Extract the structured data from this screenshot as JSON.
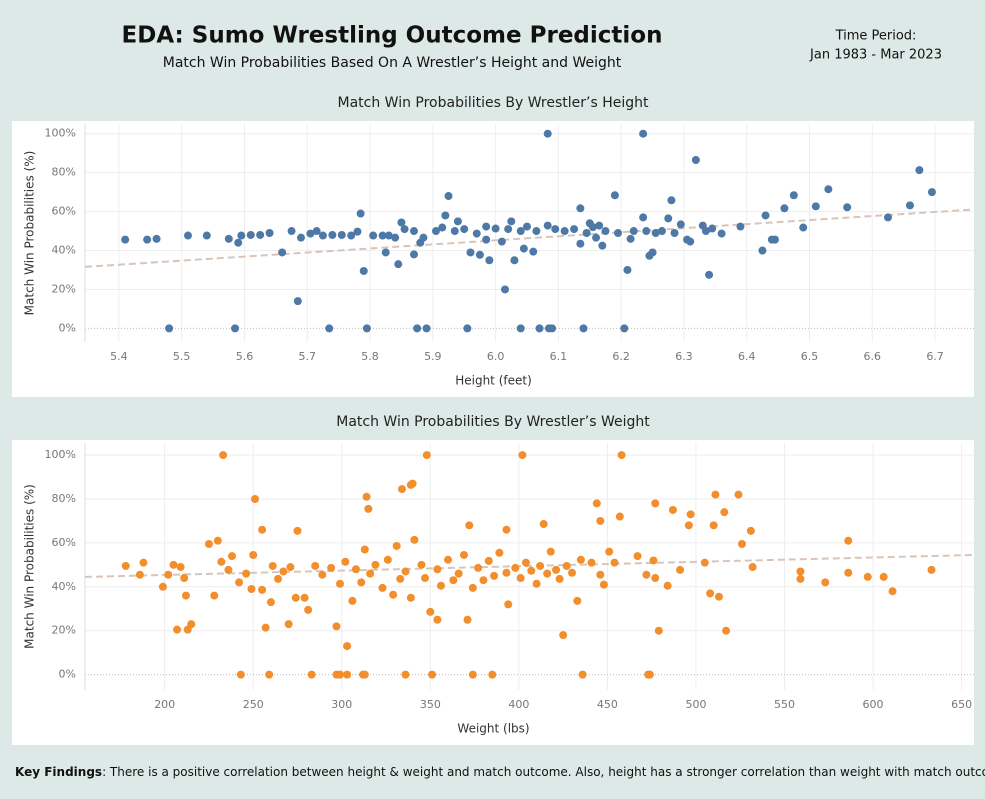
{
  "header": {
    "title": "EDA: Sumo Wrestling Outcome Prediction",
    "subtitle": "Match Win Probabilities Based On A Wrestler’s Height and Weight",
    "time_period_label": "Time Period:",
    "time_period": "Jan 1983 - Mar 2023"
  },
  "footer": {
    "key_findings_label": "Key Findings",
    "key_findings_text": ": There is a positive correlation between height & weight and match outcome. Also, height has a stronger correlation than weight with match outcomes."
  },
  "chart_data": [
    {
      "type": "scatter",
      "title": "Match Win Probabilities By Wrestler’s Height",
      "x_label": "Height (feet)",
      "y_label": "Match Win Probabilities (%)",
      "color": "#4e79a7",
      "x": [
        5.41,
        5.445,
        5.46,
        5.48,
        5.51,
        5.54,
        5.575,
        5.585,
        5.59,
        5.595,
        5.61,
        5.625,
        5.64,
        5.66,
        5.675,
        5.685,
        5.69,
        5.705,
        5.715,
        5.725,
        5.735,
        5.74,
        5.755,
        5.77,
        5.78,
        5.785,
        5.79,
        5.795,
        5.805,
        5.82,
        5.825,
        5.83,
        5.84,
        5.845,
        5.85,
        5.855,
        5.87,
        5.87,
        5.875,
        5.88,
        5.885,
        5.89,
        5.905,
        5.915,
        5.92,
        5.925,
        5.935,
        5.94,
        5.95,
        5.955,
        5.96,
        5.97,
        5.975,
        5.985,
        5.985,
        5.99,
        6.0,
        6.01,
        6.015,
        6.02,
        6.025,
        6.03,
        6.04,
        6.04,
        6.045,
        6.05,
        6.06,
        6.065,
        6.07,
        6.083,
        6.083,
        6.085,
        6.09,
        6.095,
        6.11,
        6.125,
        6.135,
        6.135,
        6.14,
        6.145,
        6.15,
        6.155,
        6.16,
        6.165,
        6.17,
        6.175,
        6.19,
        6.195,
        6.205,
        6.21,
        6.215,
        6.22,
        6.235,
        6.235,
        6.24,
        6.245,
        6.25,
        6.255,
        6.265,
        6.275,
        6.28,
        6.285,
        6.295,
        6.305,
        6.31,
        6.319,
        6.33,
        6.335,
        6.34,
        6.345,
        6.36,
        6.39,
        6.425,
        6.43,
        6.44,
        6.445,
        6.46,
        6.475,
        6.49,
        6.51,
        6.53,
        6.56,
        6.625,
        6.66,
        6.675,
        6.695
      ],
      "values": [
        45.6,
        45.6,
        46,
        0,
        47.7,
        47.7,
        46,
        0,
        44,
        47.7,
        48,
        48,
        49,
        39,
        50,
        14,
        46.6,
        48.7,
        50,
        47.7,
        0,
        48,
        48,
        47.7,
        49.7,
        59,
        29.5,
        0,
        47.7,
        47.7,
        39,
        47.7,
        46.6,
        33,
        54.4,
        51,
        50,
        38,
        0,
        44,
        46.6,
        0,
        50,
        51.8,
        58,
        68,
        50,
        55,
        51,
        0,
        39,
        48.7,
        37.8,
        45.6,
        52.3,
        35,
        51.3,
        44.6,
        20,
        51,
        55,
        35,
        0,
        50,
        41,
        52.3,
        39.4,
        50,
        0,
        100,
        52.8,
        0,
        0,
        51,
        50,
        51,
        61.7,
        43.5,
        0,
        49,
        54,
        52,
        46.6,
        52.8,
        42.5,
        50,
        68.4,
        49,
        0,
        30,
        46,
        50,
        100,
        57,
        50,
        37.3,
        39,
        49,
        50,
        56.5,
        65.8,
        49,
        53.4,
        45.6,
        44.6,
        86.5,
        52.8,
        50,
        27.5,
        51.3,
        48.7,
        52.3,
        40,
        58,
        45.6,
        45.6,
        61.7,
        68.4,
        51.8,
        62.7,
        71.5,
        62.2,
        57,
        63.2,
        81.3,
        70
      ],
      "xlim": [
        5.346,
        6.762
      ],
      "ylim": [
        -7,
        105
      ],
      "xticks": [
        5.4,
        5.5,
        5.6,
        5.7,
        5.8,
        5.9,
        {
          "value": 6,
          "label": "6.0"
        },
        6.1,
        6.2,
        6.3,
        6.4,
        6.5,
        6.6,
        6.7
      ],
      "yticks": [
        {
          "value": 0,
          "label": "0%"
        },
        {
          "value": 20,
          "label": "20%"
        },
        {
          "value": 40,
          "label": "40%"
        },
        {
          "value": 60,
          "label": "60%"
        },
        {
          "value": 80,
          "label": "80%"
        },
        {
          "value": 100,
          "label": "100%"
        }
      ],
      "grid": true,
      "trendline": {
        "x": [
          5.346,
          6.762
        ],
        "values": [
          31.6,
          61.1
        ],
        "color": "#d8c5b9"
      }
    },
    {
      "type": "scatter",
      "title": "Match Win Probabilities By Wrestler’s Weight",
      "x_label": "Weight (lbs)",
      "y_label": "Match Win Probabilities (%)",
      "color": "#f28e2b",
      "x": [
        233,
        251,
        255,
        243,
        259,
        257,
        260,
        270,
        283,
        297,
        299,
        303,
        303,
        297,
        312,
        313,
        336,
        351,
        374,
        385,
        436,
        473,
        474,
        348,
        402,
        458,
        314,
        315,
        334,
        339,
        340,
        372,
        393,
        414,
        444,
        446,
        457,
        477,
        487,
        496,
        497,
        511,
        510,
        516,
        524,
        526,
        531,
        425,
        207,
        213,
        215,
        479,
        517,
        508,
        513,
        433,
        505,
        532,
        559,
        559,
        573,
        586,
        586,
        597,
        606,
        611,
        633,
        467,
        476,
        484,
        491,
        472,
        477,
        451,
        448,
        178,
        186,
        188,
        199,
        202,
        205,
        209,
        211,
        212,
        225,
        228,
        230,
        232,
        236,
        238,
        242,
        246,
        249,
        250,
        255,
        261,
        264,
        267,
        271,
        274,
        275,
        279,
        281,
        285,
        289,
        294,
        299,
        302,
        306,
        308,
        311,
        313,
        316,
        319,
        323,
        326,
        329,
        331,
        333,
        336,
        339,
        341,
        345,
        347,
        350,
        354,
        354,
        356,
        360,
        363,
        366,
        369,
        371,
        374,
        377,
        380,
        383,
        386,
        389,
        393,
        394,
        398,
        401,
        404,
        407,
        410,
        412,
        416,
        418,
        421,
        423,
        427,
        430,
        435,
        441,
        446,
        454
      ],
      "values": [
        100,
        80,
        66,
        0,
        0,
        21.4,
        33,
        23,
        0,
        0,
        0,
        0,
        13,
        22,
        0,
        0,
        0,
        0,
        0,
        0,
        0,
        0,
        0,
        100,
        100,
        100,
        81,
        75.5,
        84.5,
        86.4,
        87,
        68,
        66,
        68.6,
        78,
        70,
        72,
        78,
        75,
        68,
        73,
        82,
        68,
        74,
        82,
        59.5,
        65.5,
        18,
        20.5,
        20.5,
        23,
        20,
        20,
        37,
        35.5,
        33.6,
        51,
        49,
        43.6,
        47,
        42,
        46.4,
        61,
        44.5,
        44.5,
        38,
        47.7,
        54,
        52,
        40.5,
        47.7,
        45.5,
        44,
        56,
        41,
        49.5,
        45.5,
        51,
        40,
        45.5,
        50,
        49,
        44,
        36,
        59.5,
        36,
        61,
        51.4,
        47.7,
        54,
        42,
        46,
        39,
        54.5,
        38.6,
        49.5,
        43.6,
        47,
        49,
        35,
        65.5,
        35,
        29.5,
        49.5,
        45.5,
        48.6,
        41.4,
        51.4,
        33.6,
        48,
        42,
        57,
        46,
        50,
        39.5,
        52.3,
        36.4,
        58.6,
        43.6,
        47,
        35,
        61.4,
        50,
        44,
        28.6,
        48,
        25,
        40.5,
        52.3,
        43,
        46,
        54.5,
        25,
        39.5,
        48.6,
        43,
        51.8,
        45,
        55.5,
        46.4,
        32,
        48.6,
        44,
        51,
        47.3,
        41.4,
        49.5,
        46,
        56,
        47.7,
        43.6,
        49.5,
        46.4,
        52.3,
        51,
        45.5,
        51
      ],
      "xlim": [
        155,
        657
      ],
      "ylim": [
        -7,
        105.5
      ],
      "xticks": [
        200,
        250,
        300,
        350,
        400,
        450,
        500,
        550,
        600,
        650
      ],
      "yticks": [
        {
          "value": 0,
          "label": "0%"
        },
        {
          "value": 20,
          "label": "20%"
        },
        {
          "value": 40,
          "label": "40%"
        },
        {
          "value": 60,
          "label": "60%"
        },
        {
          "value": 80,
          "label": "80%"
        },
        {
          "value": 100,
          "label": "100%"
        }
      ],
      "grid": true,
      "trendline": {
        "x": [
          155,
          657
        ],
        "values": [
          44.5,
          54.5
        ],
        "color": "#d8c5b9"
      }
    }
  ]
}
